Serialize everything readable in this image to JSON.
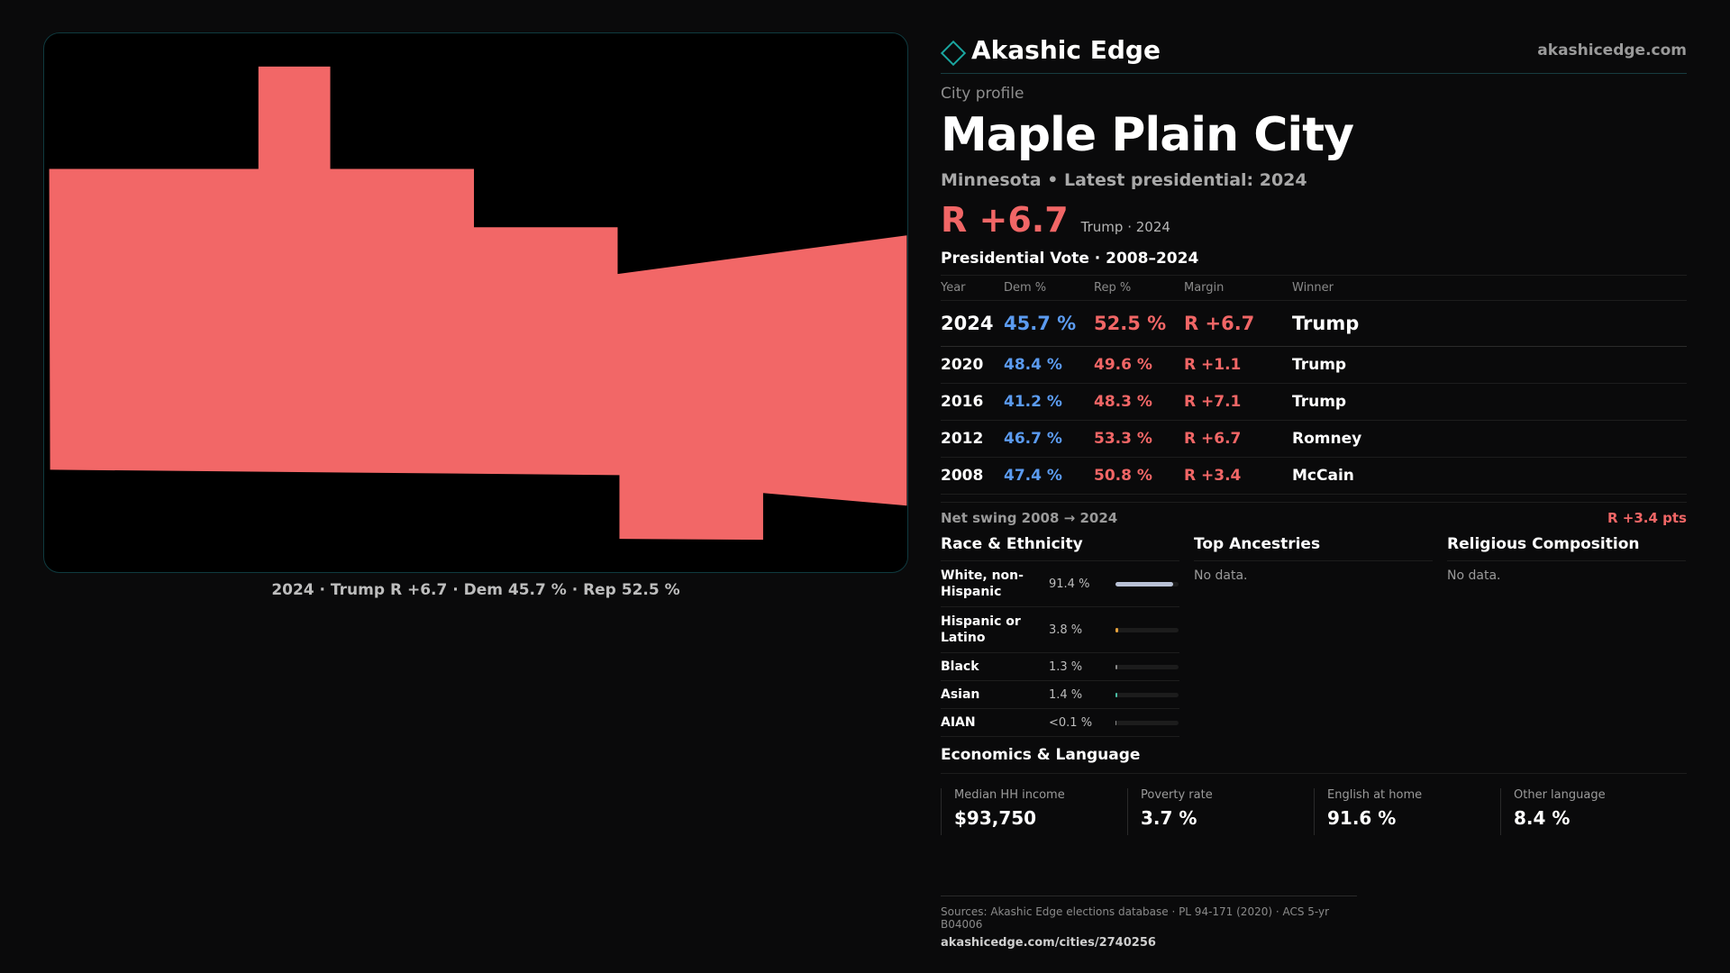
{
  "map": {
    "fill_color": "#f26767",
    "caption": "2024 · Trump  R +6.7 · Dem 45.7 % · Rep 52.5 %"
  },
  "brand": {
    "name": "Akashic Edge",
    "icon": "diamond-outline-icon",
    "url": "akashicedge.com"
  },
  "profile": {
    "eyebrow": "City profile",
    "title": "Maple Plain City",
    "subtitle": "Minnesota • Latest presidential: 2024",
    "margin": "R +6.7",
    "margin_note": "Trump · 2024"
  },
  "presidential": {
    "title": "Presidential Vote · 2008–2024",
    "headers": [
      "Year",
      "Dem %",
      "Rep %",
      "Margin",
      "Winner"
    ],
    "rows": [
      {
        "year": "2024",
        "dem": "45.7 %",
        "rep": "52.5 %",
        "margin": "R +6.7",
        "winner": "Trump"
      },
      {
        "year": "2020",
        "dem": "48.4 %",
        "rep": "49.6 %",
        "margin": "R +1.1",
        "winner": "Trump"
      },
      {
        "year": "2016",
        "dem": "41.2 %",
        "rep": "48.3 %",
        "margin": "R +7.1",
        "winner": "Trump"
      },
      {
        "year": "2012",
        "dem": "46.7 %",
        "rep": "53.3 %",
        "margin": "R +6.7",
        "winner": "Romney"
      },
      {
        "year": "2008",
        "dem": "47.4 %",
        "rep": "50.8 %",
        "margin": "R +3.4",
        "winner": "McCain"
      }
    ],
    "swing_label": "Net swing 2008 → 2024",
    "swing_value": "R +3.4 pts"
  },
  "race": {
    "title": "Race & Ethnicity",
    "rows": [
      {
        "name": "White, non-Hispanic",
        "pct": "91.4 %",
        "share": 0.914,
        "color": "#b9c2d6"
      },
      {
        "name": "Hispanic or Latino",
        "pct": "3.8 %",
        "share": 0.038,
        "color": "#e6a23c"
      },
      {
        "name": "Black",
        "pct": "1.3 %",
        "share": 0.013,
        "color": "#8a8a8a"
      },
      {
        "name": "Asian",
        "pct": "1.4 %",
        "share": 0.014,
        "color": "#4bbfa6"
      },
      {
        "name": "AIAN",
        "pct": "<0.1 %",
        "share": 0.0,
        "color": "#8a8a8a"
      }
    ]
  },
  "ancestries": {
    "title": "Top Ancestries",
    "empty": "No data."
  },
  "religion": {
    "title": "Religious Composition",
    "empty": "No data."
  },
  "economics": {
    "title": "Economics & Language",
    "cells": [
      {
        "label": "Median HH income",
        "value": "$93,750"
      },
      {
        "label": "Poverty rate",
        "value": "3.7 %"
      },
      {
        "label": "English at home",
        "value": "91.6 %"
      },
      {
        "label": "Other language",
        "value": "8.4 %"
      }
    ]
  },
  "footer": {
    "sources": "Sources: Akashic Edge elections database · PL 94-171 (2020) · ACS 5-yr B04006",
    "url": "akashicedge.com/cities/2740256"
  }
}
